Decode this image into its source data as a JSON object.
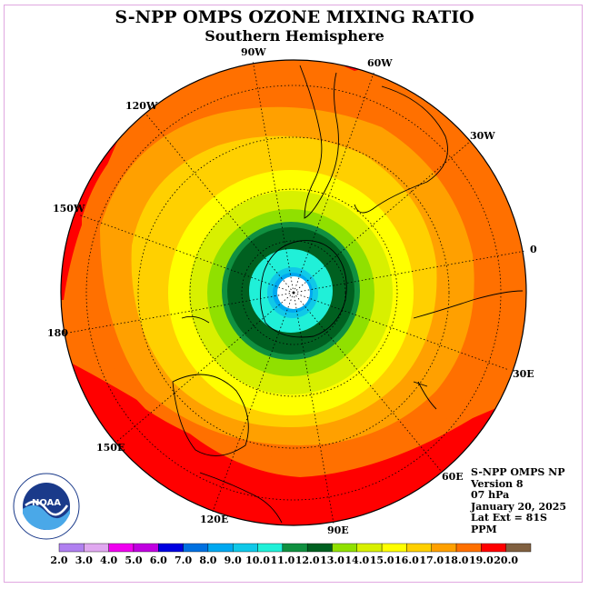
{
  "title": "S-NPP OMPS OZONE MIXING RATIO",
  "subtitle": "Southern Hemisphere",
  "longitude_labels": [
    "90W",
    "60W",
    "30W",
    "0",
    "30E",
    "60E",
    "90E",
    "120E",
    "150E",
    "180",
    "150W",
    "120W"
  ],
  "info": {
    "instrument": "S-NPP OMPS NP",
    "version": "Version 8",
    "level": "07 hPa",
    "date": "January 20, 2025",
    "lat_ext": "Lat Ext = 81S",
    "units": "PPM"
  },
  "logo": {
    "text": "NOAA",
    "ring_text": "NATIONAL OCEANIC AND ATMOSPHERIC ADMINISTRATION · U.S. DEPARTMENT OF COMMERCE"
  },
  "colorbar": {
    "ticks": [
      "2.0",
      "3.0",
      "4.0",
      "5.0",
      "6.0",
      "7.0",
      "8.0",
      "9.0",
      "10.0",
      "11.0",
      "12.0",
      "13.0",
      "14.0",
      "15.0",
      "16.0",
      "17.0",
      "18.0",
      "19.0",
      "20.0"
    ],
    "colors": [
      "#b080f0",
      "#e0a8f0",
      "#f000f0",
      "#c000e0",
      "#0000e0",
      "#0070e0",
      "#00a8f0",
      "#10c8e8",
      "#20f0d8",
      "#109040",
      "#006020",
      "#90e000",
      "#d8f000",
      "#ffff00",
      "#ffd000",
      "#ffa000",
      "#ff7000",
      "#ff0000",
      "#806040"
    ]
  }
}
